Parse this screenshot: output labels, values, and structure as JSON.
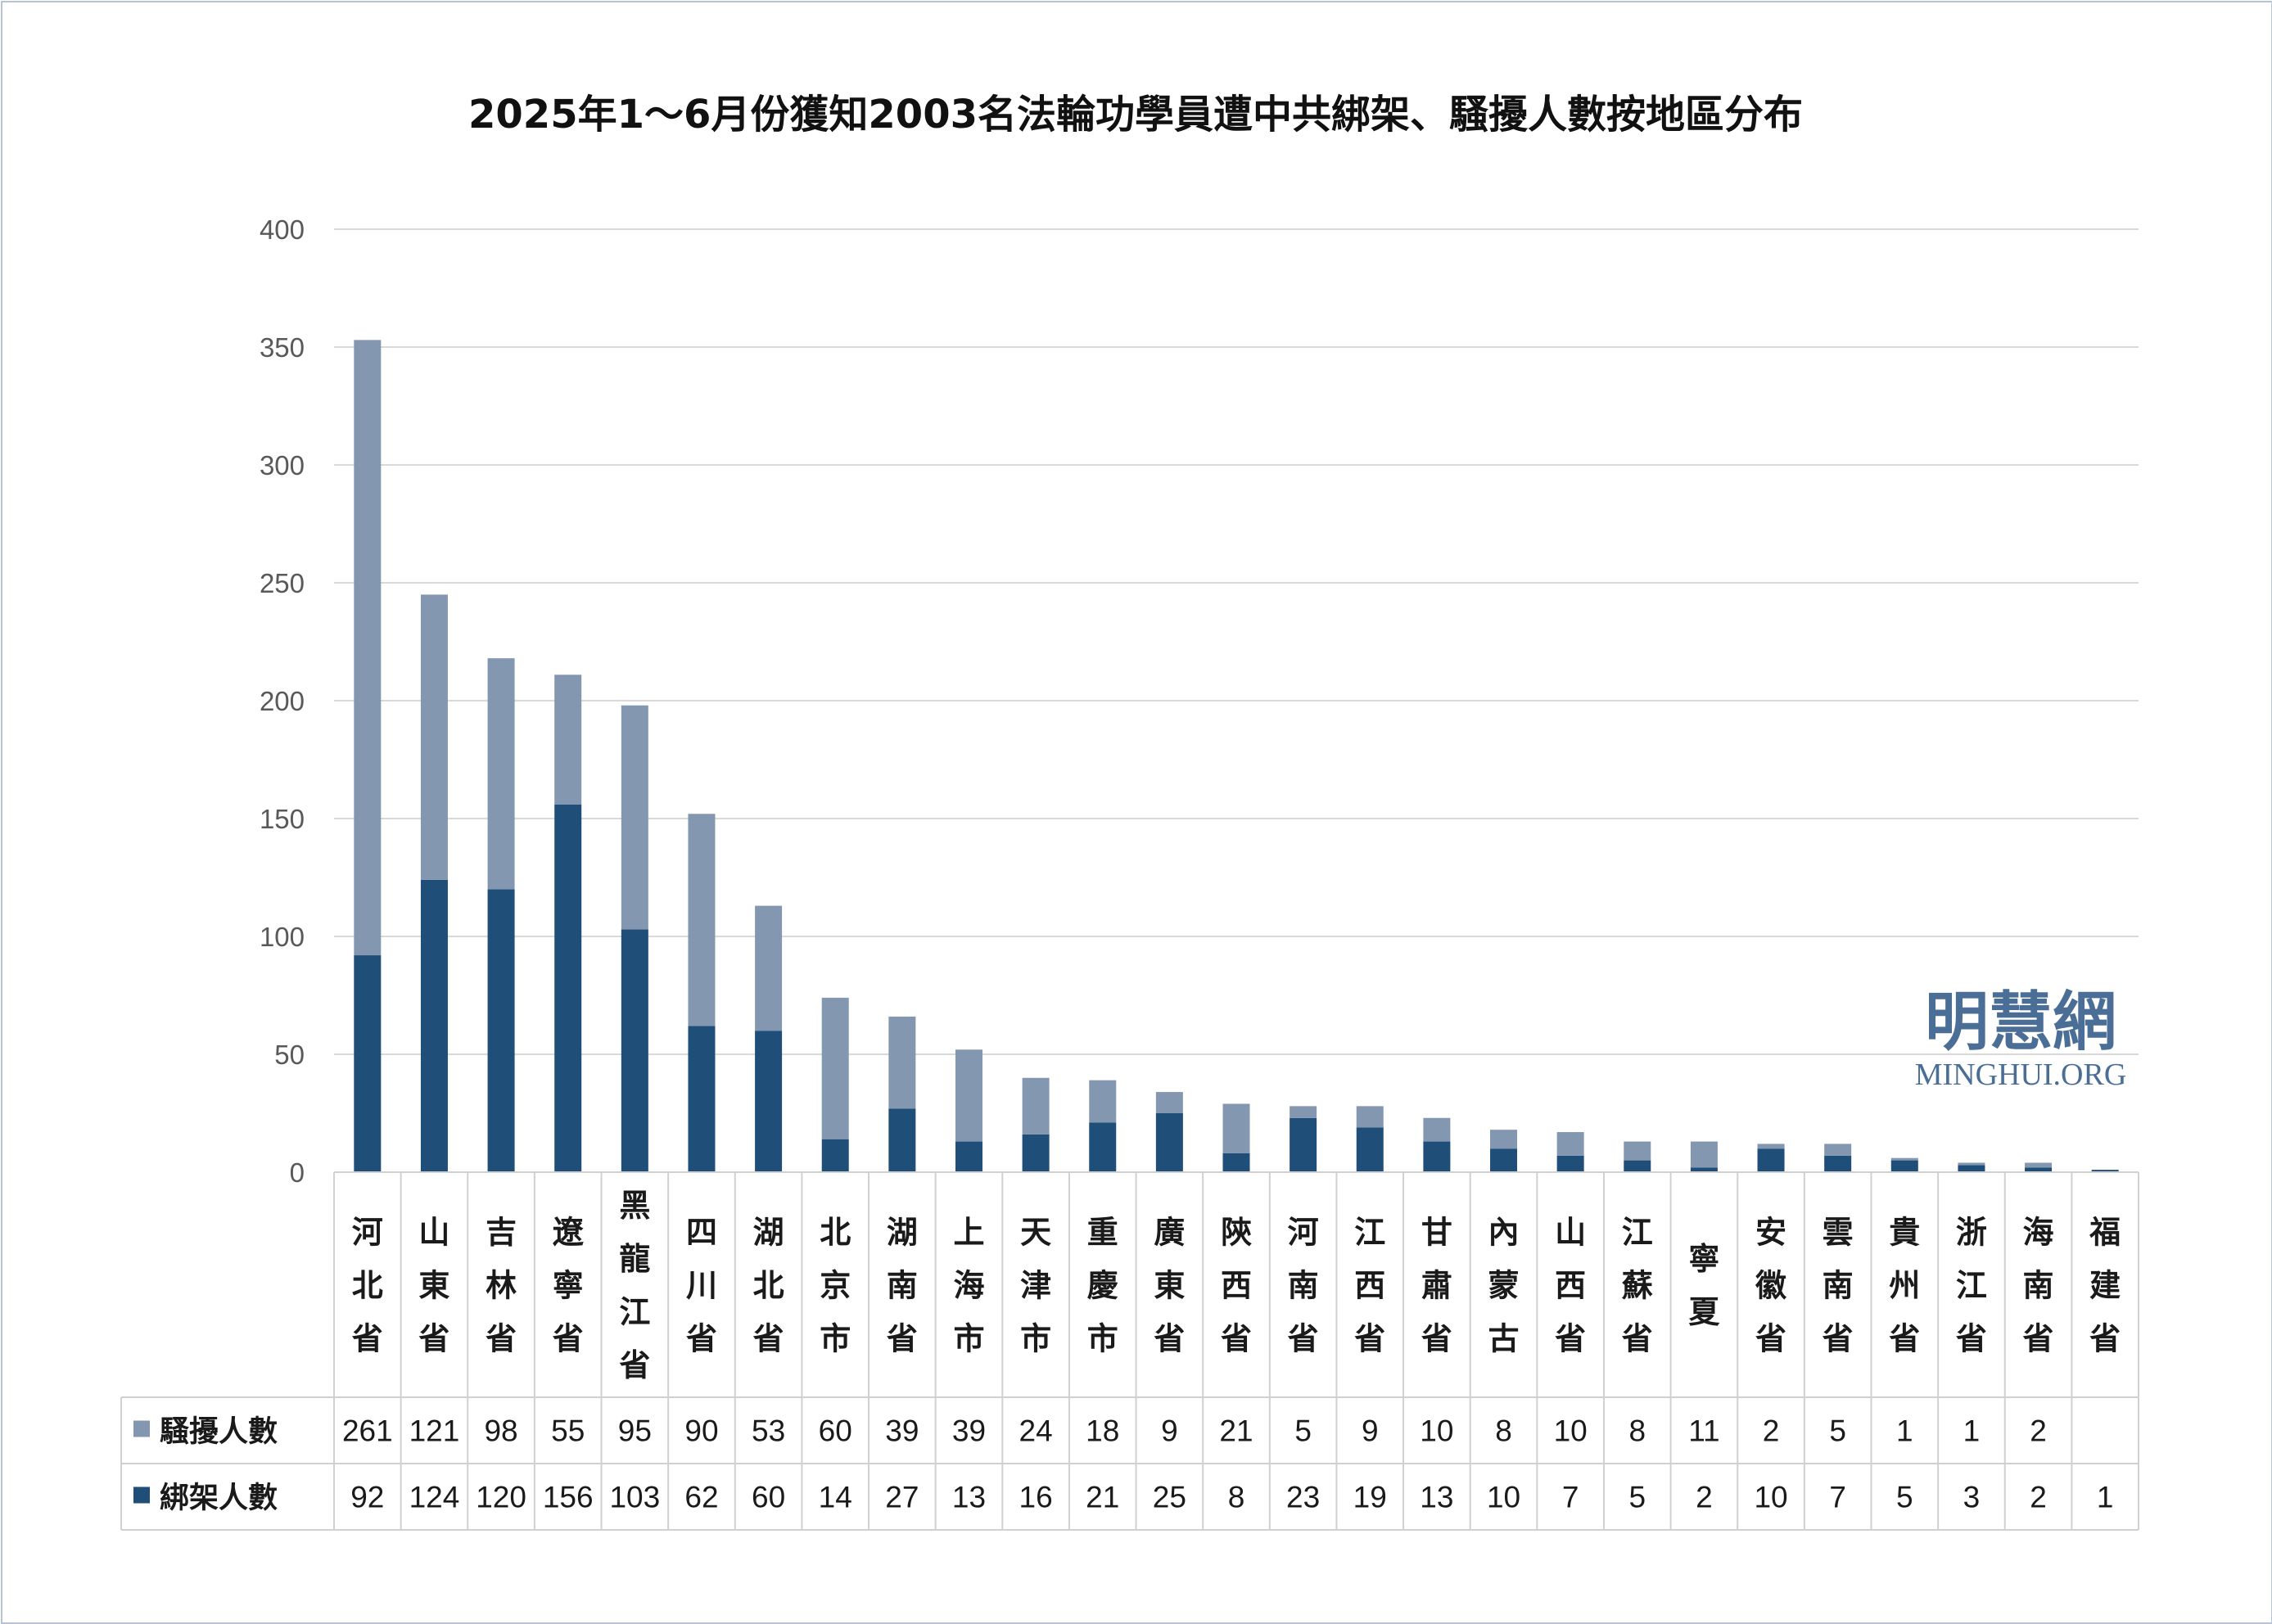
{
  "chart_data": {
    "type": "bar",
    "stacked": true,
    "title": "2025年1～6月份獲知2003名法輪功學員遭中共綁架、騷擾人數按地區分布",
    "ylim": [
      0,
      400
    ],
    "yticks": [
      "0",
      "50",
      "100",
      "150",
      "200",
      "250",
      "300",
      "350",
      "400"
    ],
    "grid": true,
    "legend_placement": "data-table-left",
    "categories": [
      "河北省",
      "山東省",
      "吉林省",
      "遼寧省",
      "黑龍江省",
      "四川省",
      "湖北省",
      "北京市",
      "湖南省",
      "上海市",
      "天津市",
      "重慶市",
      "廣東省",
      "陝西省",
      "河南省",
      "江西省",
      "甘肅省",
      "內蒙古",
      "山西省",
      "江蘇省",
      "寧夏",
      "安徽省",
      "雲南省",
      "貴州省",
      "浙江省",
      "海南省",
      "福建省"
    ],
    "series": [
      {
        "name": "綁架人數",
        "color": "#1f4e79",
        "values": [
          92,
          124,
          120,
          156,
          103,
          62,
          60,
          14,
          27,
          13,
          16,
          21,
          25,
          8,
          23,
          19,
          13,
          10,
          7,
          5,
          2,
          10,
          7,
          5,
          3,
          2,
          1
        ]
      },
      {
        "name": "騷擾人數",
        "color": "#8497b0",
        "values": [
          261,
          121,
          98,
          55,
          95,
          90,
          53,
          60,
          39,
          39,
          24,
          18,
          9,
          21,
          5,
          9,
          10,
          8,
          10,
          8,
          11,
          2,
          5,
          1,
          1,
          2,
          null
        ]
      }
    ]
  },
  "watermark": {
    "chinese": "明慧網",
    "english": "MINGHUI.ORG",
    "color": "#4a6e96"
  }
}
